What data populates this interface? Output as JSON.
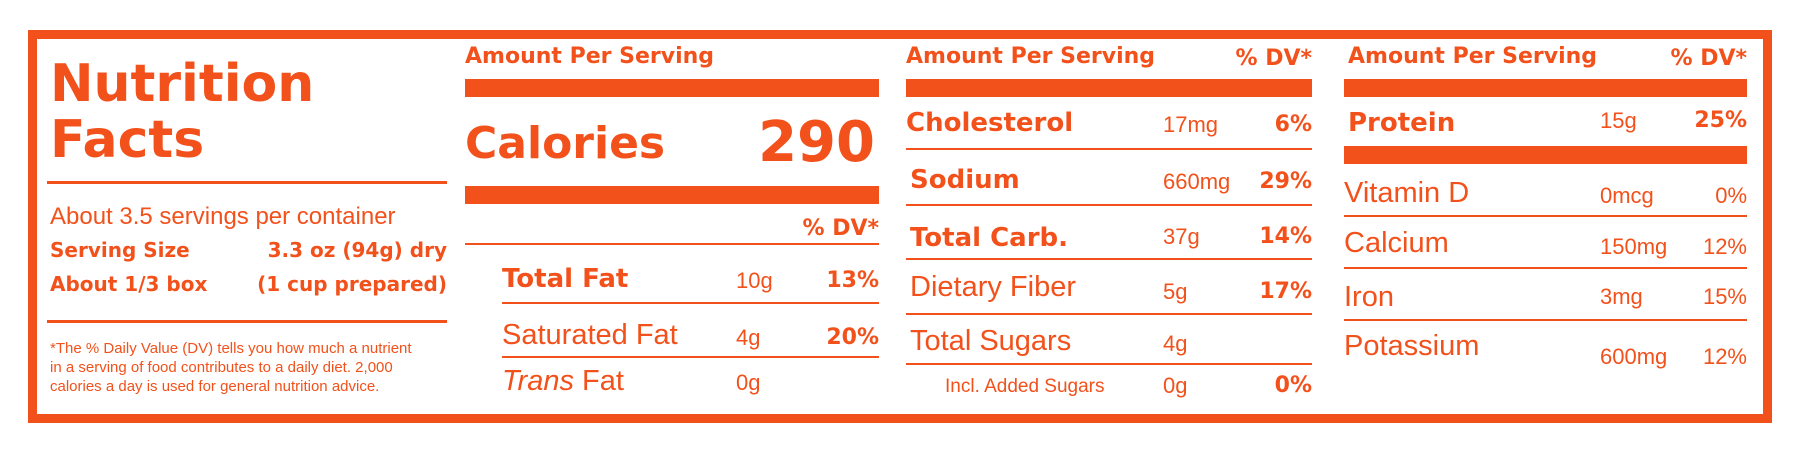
{
  "brand_color": "#f2511b",
  "left": {
    "title_line1": "Nutrition",
    "title_line2": "Facts",
    "servings": "About 3.5 servings per container",
    "serving_size_label": "Serving Size",
    "serving_size_value": "3.3 oz (94g) dry",
    "box_label": "About 1/3 box",
    "box_value": "(1 cup prepared)",
    "footnote_line1": "*The % Daily Value (DV) tells you how much a nutrient",
    "footnote_line2": "in a serving of food contributes to a daily diet. 2,000",
    "footnote_line3": "calories a day is used for general nutrition advice."
  },
  "col1": {
    "header": "Amount Per Serving",
    "calories_label": "Calories",
    "calories_value": "290",
    "dv_header": "% DV*",
    "rows": [
      {
        "name": "Total Fat",
        "amount": "10g",
        "dv": "13%"
      },
      {
        "name": "Saturated Fat",
        "amount": "4g",
        "dv": "20%"
      },
      {
        "name_italic": "Trans",
        "name": " Fat",
        "amount": "0g",
        "dv": ""
      }
    ]
  },
  "col2": {
    "header": "Amount Per Serving",
    "dv_header": "% DV*",
    "rows": [
      {
        "name": "Cholesterol",
        "amount": "17mg",
        "dv": "6%"
      },
      {
        "name": "Sodium",
        "amount": "660mg",
        "dv": "29%"
      },
      {
        "name": "Total Carb.",
        "amount": "37g",
        "dv": "14%"
      },
      {
        "name": "Dietary Fiber",
        "amount": "5g",
        "dv": "17%"
      },
      {
        "name": "Total Sugars",
        "amount": "4g",
        "dv": ""
      },
      {
        "name": "Incl. Added Sugars",
        "amount": "0g",
        "dv": "0%"
      }
    ]
  },
  "col3": {
    "header": "Amount Per Serving",
    "dv_header": "% DV*",
    "rows": [
      {
        "name": "Protein",
        "amount": "15g",
        "dv": "25%"
      },
      {
        "name": "Vitamin D",
        "amount": "0mcg",
        "dv": "0%"
      },
      {
        "name": "Calcium",
        "amount": "150mg",
        "dv": "12%"
      },
      {
        "name": "Iron",
        "amount": "3mg",
        "dv": "15%"
      },
      {
        "name": "Potassium",
        "amount": "600mg",
        "dv": "12%"
      }
    ]
  }
}
